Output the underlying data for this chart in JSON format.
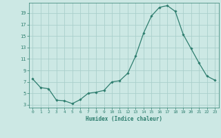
{
  "x": [
    0,
    1,
    2,
    3,
    4,
    5,
    6,
    7,
    8,
    9,
    10,
    11,
    12,
    13,
    14,
    15,
    16,
    17,
    18,
    19,
    20,
    21,
    22,
    23
  ],
  "y": [
    7.5,
    6.0,
    5.8,
    3.8,
    3.7,
    3.2,
    3.9,
    5.0,
    5.2,
    5.5,
    7.0,
    7.2,
    8.5,
    11.5,
    15.5,
    18.5,
    20.0,
    20.3,
    19.3,
    15.3,
    12.8,
    10.3,
    8.0,
    7.3
  ],
  "line_color": "#2d7d6e",
  "marker": "D",
  "marker_size": 1.8,
  "bg_color": "#cce8e4",
  "grid_color": "#aacfcb",
  "xlabel": "Humidex (Indice chaleur)",
  "ylabel_ticks": [
    3,
    5,
    7,
    9,
    11,
    13,
    15,
    17,
    19
  ],
  "xticks": [
    0,
    1,
    2,
    3,
    4,
    5,
    6,
    7,
    8,
    9,
    10,
    11,
    12,
    13,
    14,
    15,
    16,
    17,
    18,
    19,
    20,
    21,
    22,
    23
  ],
  "xlim": [
    -0.5,
    23.5
  ],
  "ylim": [
    2.5,
    20.8
  ],
  "tick_color": "#2d7d6e",
  "label_color": "#2d7d6e"
}
